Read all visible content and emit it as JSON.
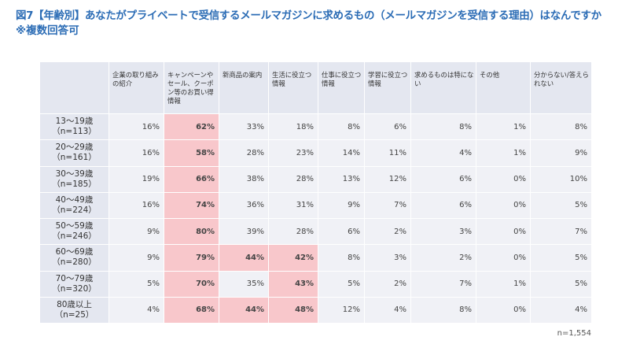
{
  "title": {
    "line1": "図7【年齢別】あなたがプライベートで受信するメールマガジンに求めるもの（メールマガジンを受信する理由）はなんですか",
    "line2": "※複数回答可"
  },
  "note": "n=1,554",
  "colors": {
    "header_bg": "#e4e7f0",
    "cell_bg": "#f0f1f6",
    "highlight": "#f8c7cb",
    "title": "#2b6cb5"
  },
  "chart_data": {
    "type": "table",
    "columns": [
      "企業の取り組みの紹介",
      "キャンペーンやセール、クーポン等のお買い得情報",
      "新商品の案内",
      "生活に役立つ情報",
      "仕事に役立つ情報",
      "学習に役立つ情報",
      "求めるものは特にない",
      "その他",
      "分からない/答えられない"
    ],
    "rows": [
      {
        "age": "13～19歳",
        "n": "（n=113）",
        "values": [
          "16%",
          "62%",
          "33%",
          "18%",
          "8%",
          "6%",
          "8%",
          "1%",
          "8%"
        ],
        "highlight": [
          1
        ]
      },
      {
        "age": "20～29歳",
        "n": "（n=161）",
        "values": [
          "16%",
          "58%",
          "28%",
          "23%",
          "14%",
          "11%",
          "4%",
          "1%",
          "9%"
        ],
        "highlight": [
          1
        ]
      },
      {
        "age": "30～39歳",
        "n": "（n=185）",
        "values": [
          "19%",
          "66%",
          "38%",
          "28%",
          "13%",
          "12%",
          "6%",
          "0%",
          "10%"
        ],
        "highlight": [
          1
        ]
      },
      {
        "age": "40～49歳",
        "n": "（n=224）",
        "values": [
          "16%",
          "74%",
          "36%",
          "31%",
          "9%",
          "7%",
          "6%",
          "0%",
          "5%"
        ],
        "highlight": [
          1
        ]
      },
      {
        "age": "50～59歳",
        "n": "（n=246）",
        "values": [
          "9%",
          "80%",
          "39%",
          "28%",
          "6%",
          "2%",
          "3%",
          "0%",
          "7%"
        ],
        "highlight": [
          1
        ]
      },
      {
        "age": "60～69歳",
        "n": "（n=280）",
        "values": [
          "9%",
          "79%",
          "44%",
          "42%",
          "8%",
          "3%",
          "2%",
          "0%",
          "5%"
        ],
        "highlight": [
          1,
          2,
          3
        ]
      },
      {
        "age": "70～79歳",
        "n": "（n=320）",
        "values": [
          "5%",
          "70%",
          "35%",
          "43%",
          "5%",
          "2%",
          "7%",
          "1%",
          "5%"
        ],
        "highlight": [
          1,
          3
        ]
      },
      {
        "age": "80歳以上",
        "n": "（n=25）",
        "values": [
          "4%",
          "68%",
          "44%",
          "48%",
          "12%",
          "4%",
          "8%",
          "0%",
          "4%"
        ],
        "highlight": [
          1,
          2,
          3
        ]
      }
    ]
  }
}
